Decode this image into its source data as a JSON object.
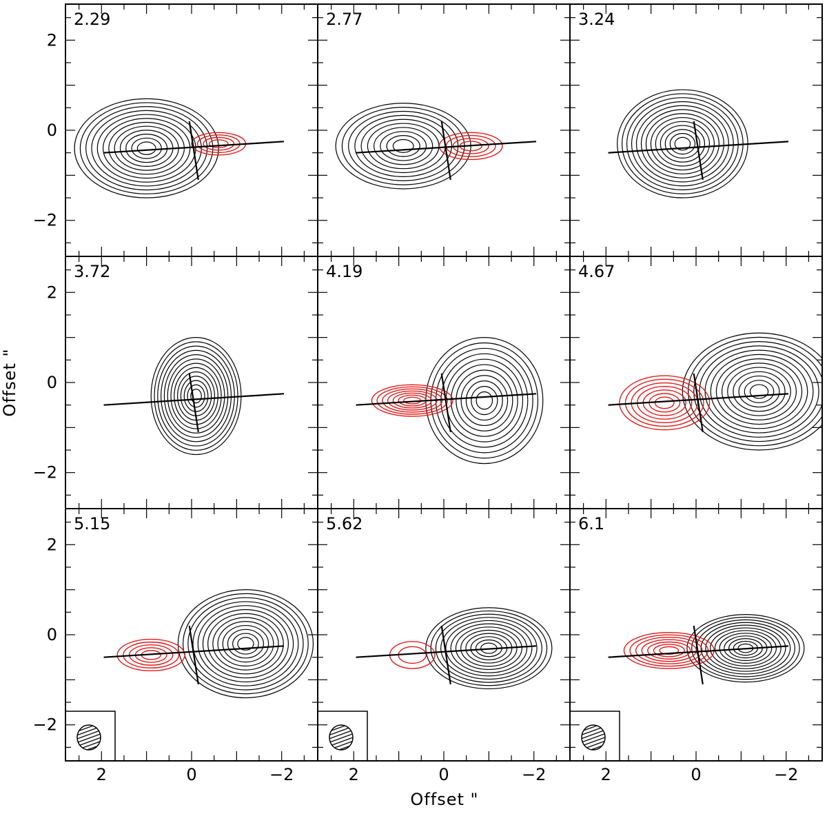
{
  "chart_data": {
    "type": "contour",
    "xlabel": "Offset \"",
    "ylabel": "Offset \"",
    "xlim": [
      2.8,
      -2.8
    ],
    "ylim": [
      -2.8,
      2.8
    ],
    "x_ticklabels": [
      "2",
      "0",
      "−2"
    ],
    "y_ticklabels": [
      "2",
      "0",
      "−2"
    ],
    "grid": false,
    "colors": {
      "positive": "#000000",
      "negative": "#e01a1a"
    },
    "beam_icon": "hatched-ellipse",
    "line_segments": {
      "jet_axis": {
        "x": [
          1.95,
          -2.05
        ],
        "y": [
          -0.5,
          -0.25
        ]
      },
      "perpendicular": {
        "x": [
          0.05,
          -0.15
        ],
        "y": [
          0.2,
          -1.1
        ]
      }
    },
    "panels": [
      {
        "velocity": "2.29",
        "emission": [
          {
            "sign": "pos",
            "x": 1.0,
            "y": -0.4,
            "rx": 1.6,
            "ry": 1.1,
            "levels": 12
          },
          {
            "sign": "neg",
            "x": -0.6,
            "y": -0.3,
            "rx": 0.6,
            "ry": 0.25,
            "levels": 4
          }
        ]
      },
      {
        "velocity": "2.77",
        "emission": [
          {
            "sign": "pos",
            "x": 0.9,
            "y": -0.35,
            "rx": 1.5,
            "ry": 0.95,
            "levels": 10
          },
          {
            "sign": "neg",
            "x": -0.6,
            "y": -0.35,
            "rx": 0.7,
            "ry": 0.3,
            "levels": 4
          }
        ]
      },
      {
        "velocity": "3.24",
        "emission": [
          {
            "sign": "pos",
            "x": 0.3,
            "y": -0.3,
            "rx": 1.45,
            "ry": 1.2,
            "levels": 13
          }
        ]
      },
      {
        "velocity": "3.72",
        "emission": [
          {
            "sign": "pos",
            "x": -0.1,
            "y": -0.3,
            "rx": 1.0,
            "ry": 1.3,
            "levels": 13
          }
        ]
      },
      {
        "velocity": "4.19",
        "emission": [
          {
            "sign": "pos",
            "x": -0.9,
            "y": -0.4,
            "rx": 1.3,
            "ry": 1.4,
            "levels": 11
          },
          {
            "sign": "neg",
            "x": 0.7,
            "y": -0.4,
            "rx": 0.9,
            "ry": 0.35,
            "levels": 7
          }
        ]
      },
      {
        "velocity": "4.67",
        "emission": [
          {
            "sign": "pos",
            "x": -1.4,
            "y": -0.2,
            "rx": 1.7,
            "ry": 1.3,
            "levels": 13
          },
          {
            "sign": "neg",
            "x": 0.7,
            "y": -0.45,
            "rx": 1.0,
            "ry": 0.6,
            "levels": 7
          }
        ]
      },
      {
        "velocity": "5.15",
        "emission": [
          {
            "sign": "pos",
            "x": -1.2,
            "y": -0.2,
            "rx": 1.5,
            "ry": 1.2,
            "levels": 13
          },
          {
            "sign": "neg",
            "x": 0.9,
            "y": -0.45,
            "rx": 0.75,
            "ry": 0.35,
            "levels": 5
          }
        ]
      },
      {
        "velocity": "5.62",
        "emission": [
          {
            "sign": "pos",
            "x": -1.0,
            "y": -0.3,
            "rx": 1.4,
            "ry": 0.9,
            "levels": 12
          },
          {
            "sign": "neg",
            "x": 0.7,
            "y": -0.45,
            "rx": 0.5,
            "ry": 0.3,
            "levels": 2
          }
        ]
      },
      {
        "velocity": "6.1",
        "emission": [
          {
            "sign": "pos",
            "x": -1.1,
            "y": -0.3,
            "rx": 1.3,
            "ry": 0.75,
            "levels": 12
          },
          {
            "sign": "neg",
            "x": 0.6,
            "y": -0.35,
            "rx": 1.0,
            "ry": 0.4,
            "levels": 7
          }
        ]
      }
    ]
  }
}
